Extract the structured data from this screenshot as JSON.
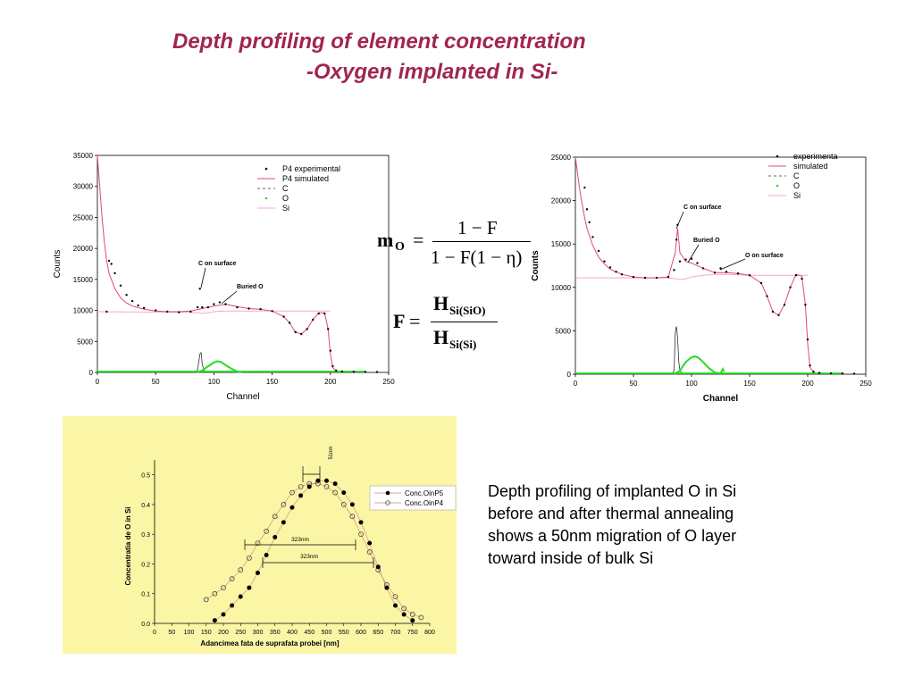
{
  "title": {
    "line1": "Depth profiling of element concentration",
    "line2": "-Oxygen implanted in Si-"
  },
  "colors": {
    "title": "#a0264f",
    "simulated": "#e04a6e",
    "oxygen": "#22dd22",
    "si": "#f2a8d0",
    "panel_bg": "#fbf5a6"
  },
  "formulas": {
    "m_lhs": "m",
    "m_sub": "O",
    "m_eq": "=",
    "m_num": "1 − F",
    "m_den": "1 − F(1 − η)",
    "F_lhs": "F",
    "F_eq": "=",
    "F_num_H": "H",
    "F_num_sub": "Si(SiO)",
    "F_den_H": "H",
    "F_den_sub": "Si(Si)"
  },
  "caption": {
    "line1": "Depth profiling of implanted O in Si",
    "line2": "before and after thermal annealing",
    "line3": "shows a 50nm migration of O layer",
    "line4": "toward inside of bulk Si"
  },
  "chart_data": [
    {
      "type": "scatter",
      "xlabel": "Channel",
      "ylabel": "Counts",
      "xlim": [
        0,
        250
      ],
      "ylim": [
        0,
        35000
      ],
      "xticks": [
        0,
        50,
        100,
        150,
        200,
        250
      ],
      "yticks": [
        0,
        5000,
        10000,
        15000,
        20000,
        25000,
        30000,
        35000
      ],
      "legend_position": "top-right",
      "legend": [
        "P4 experimental",
        "P4 simulated",
        "C",
        "O",
        "Si"
      ],
      "annotations": [
        "C on surface",
        "Buried O"
      ],
      "series": [
        {
          "name": "P4 experimental",
          "x": [
            8,
            10,
            12,
            15,
            20,
            25,
            30,
            35,
            40,
            50,
            60,
            70,
            80,
            86,
            88,
            90,
            95,
            100,
            105,
            110,
            120,
            130,
            140,
            150,
            160,
            165,
            170,
            175,
            180,
            185,
            190,
            195,
            198,
            200,
            202,
            205,
            210,
            220,
            230,
            240
          ],
          "y": [
            9800,
            18000,
            17500,
            16000,
            14000,
            12500,
            11500,
            10800,
            10400,
            10000,
            9800,
            9700,
            9800,
            10500,
            13500,
            10500,
            10500,
            11000,
            11300,
            11000,
            10500,
            10300,
            10200,
            9900,
            9000,
            8000,
            6500,
            6200,
            7000,
            8500,
            9500,
            9500,
            7000,
            3500,
            1000,
            300,
            150,
            100,
            80,
            60
          ]
        },
        {
          "name": "P4 simulated",
          "x": [
            0,
            2,
            4,
            6,
            8,
            10,
            15,
            20,
            25,
            30,
            40,
            50,
            60,
            70,
            80,
            90,
            100,
            110,
            120,
            130,
            140,
            150,
            160,
            165,
            170,
            175,
            180,
            185,
            190,
            195,
            198,
            200,
            202,
            205,
            210
          ],
          "y": [
            35000,
            30000,
            25000,
            21000,
            18000,
            16000,
            13500,
            12000,
            11200,
            10700,
            10200,
            9900,
            9800,
            9800,
            9900,
            10300,
            10700,
            11000,
            10600,
            10300,
            10200,
            9900,
            9000,
            8000,
            6500,
            6200,
            7000,
            8500,
            9600,
            9600,
            7000,
            3000,
            800,
            200,
            50
          ]
        },
        {
          "name": "C",
          "x": [
            84,
            86,
            88,
            89,
            90,
            92,
            94
          ],
          "y": [
            0,
            400,
            3000,
            3200,
            1200,
            200,
            0
          ]
        },
        {
          "name": "O",
          "x": [
            85,
            90,
            95,
            100,
            103,
            106,
            110,
            115,
            120,
            125
          ],
          "y": [
            0,
            300,
            1000,
            1600,
            1800,
            1700,
            1200,
            600,
            150,
            0
          ]
        },
        {
          "name": "Si",
          "x": [
            0,
            80,
            86,
            90,
            95,
            100,
            110,
            120,
            130,
            150,
            200
          ],
          "y": [
            9800,
            9700,
            9600,
            9500,
            9600,
            9800,
            9900,
            9900,
            9900,
            9900,
            9900
          ]
        }
      ]
    },
    {
      "type": "scatter",
      "xlabel": "Channel",
      "ylabel": "Counts",
      "xlim": [
        0,
        250
      ],
      "ylim": [
        0,
        25000
      ],
      "xticks": [
        0,
        50,
        100,
        150,
        200,
        250
      ],
      "yticks": [
        0,
        5000,
        10000,
        15000,
        20000,
        25000
      ],
      "legend_position": "top-right",
      "legend": [
        "experimenta",
        "simulated",
        "C",
        "O",
        "Si"
      ],
      "annotations": [
        "C on surface",
        "Buried O",
        "O on surface"
      ],
      "series": [
        {
          "name": "experimenta",
          "x": [
            8,
            10,
            12,
            15,
            20,
            25,
            30,
            35,
            40,
            50,
            60,
            70,
            80,
            85,
            87,
            88,
            90,
            95,
            100,
            105,
            110,
            120,
            125,
            130,
            140,
            150,
            160,
            165,
            170,
            175,
            180,
            185,
            190,
            195,
            198,
            200,
            202,
            205,
            210,
            220,
            230,
            240
          ],
          "y": [
            21500,
            19000,
            17500,
            15800,
            14200,
            13000,
            12300,
            11800,
            11500,
            11200,
            11100,
            11100,
            11200,
            12000,
            15500,
            17200,
            13000,
            13200,
            13300,
            12800,
            12200,
            11700,
            12200,
            11800,
            11600,
            11400,
            10500,
            9000,
            7200,
            6800,
            8000,
            10000,
            11400,
            11000,
            8000,
            4000,
            1000,
            300,
            150,
            100,
            80,
            60
          ]
        },
        {
          "name": "simulated",
          "x": [
            0,
            2,
            4,
            6,
            8,
            10,
            15,
            20,
            25,
            30,
            40,
            50,
            60,
            70,
            80,
            86,
            88,
            90,
            95,
            100,
            110,
            120,
            130,
            140,
            150,
            160,
            165,
            170,
            175,
            180,
            185,
            190,
            195,
            198,
            200,
            202,
            205,
            210
          ],
          "y": [
            25000,
            23000,
            21000,
            19500,
            18000,
            16800,
            14800,
            13500,
            12700,
            12100,
            11500,
            11200,
            11100,
            11100,
            11200,
            14000,
            16800,
            14000,
            13000,
            12800,
            12200,
            11700,
            11700,
            11600,
            11400,
            10500,
            9000,
            7200,
            6800,
            8000,
            10000,
            11500,
            11300,
            8000,
            3500,
            800,
            200,
            50
          ]
        },
        {
          "name": "C",
          "x": [
            83,
            85,
            86,
            87,
            88,
            89,
            90,
            92,
            94
          ],
          "y": [
            0,
            400,
            4800,
            5500,
            4200,
            1500,
            400,
            100,
            0
          ]
        },
        {
          "name": "O",
          "x": [
            85,
            90,
            95,
            100,
            103,
            106,
            110,
            115,
            120,
            125,
            127,
            128
          ],
          "y": [
            0,
            400,
            1400,
            1950,
            2050,
            1900,
            1400,
            700,
            200,
            100,
            600,
            300
          ]
        },
        {
          "name": "Si",
          "x": [
            0,
            80,
            86,
            90,
            95,
            100,
            110,
            120,
            130,
            150,
            200
          ],
          "y": [
            11100,
            11100,
            11000,
            10900,
            11000,
            11200,
            11400,
            11500,
            11500,
            11400,
            11400
          ]
        }
      ]
    },
    {
      "type": "line",
      "xlabel": "Adancimea fata de suprafata probei [nm]",
      "ylabel": "Concentratia de O in Si",
      "xlim": [
        0,
        800
      ],
      "ylim": [
        0,
        0.55
      ],
      "xticks": [
        0,
        50,
        100,
        150,
        200,
        250,
        300,
        350,
        400,
        450,
        500,
        550,
        600,
        650,
        700,
        750,
        800
      ],
      "yticks": [
        0.0,
        0.1,
        0.2,
        0.3,
        0.4,
        0.5
      ],
      "legend_position": "top-right",
      "legend": [
        "Conc.OinP5",
        "Conc.OinP4"
      ],
      "annotations": [
        "51nm",
        "323nm",
        "323nm"
      ],
      "series": [
        {
          "name": "Conc.OinP5",
          "x": [
            175,
            200,
            225,
            250,
            275,
            300,
            325,
            350,
            375,
            400,
            425,
            450,
            475,
            500,
            525,
            550,
            575,
            600,
            625,
            650,
            675,
            700,
            725,
            750
          ],
          "y": [
            0.01,
            0.03,
            0.06,
            0.09,
            0.12,
            0.17,
            0.23,
            0.29,
            0.34,
            0.39,
            0.43,
            0.46,
            0.48,
            0.48,
            0.47,
            0.44,
            0.4,
            0.34,
            0.27,
            0.19,
            0.12,
            0.06,
            0.03,
            0.01
          ]
        },
        {
          "name": "Conc.OinP4",
          "x": [
            150,
            175,
            200,
            225,
            250,
            275,
            300,
            325,
            350,
            375,
            400,
            425,
            450,
            475,
            500,
            525,
            550,
            575,
            600,
            625,
            650,
            675,
            700,
            725,
            750,
            775
          ],
          "y": [
            0.08,
            0.1,
            0.12,
            0.15,
            0.18,
            0.22,
            0.27,
            0.31,
            0.36,
            0.4,
            0.44,
            0.46,
            0.47,
            0.47,
            0.46,
            0.44,
            0.4,
            0.36,
            0.3,
            0.24,
            0.18,
            0.13,
            0.09,
            0.05,
            0.03,
            0.02
          ]
        }
      ]
    }
  ]
}
